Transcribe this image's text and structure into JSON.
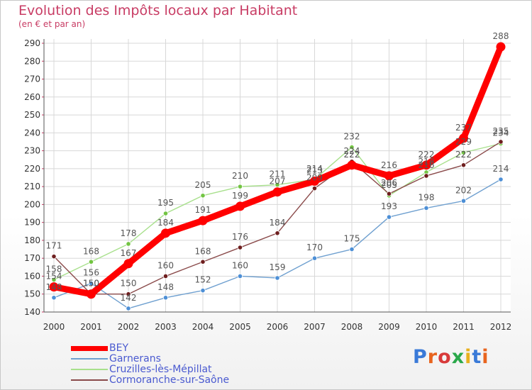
{
  "chart_data": {
    "type": "line",
    "title": "Evolution des Impôts locaux par Habitant",
    "subtitle": "(en € et par an)",
    "categories": [
      "2000",
      "2001",
      "2002",
      "2003",
      "2004",
      "2005",
      "2006",
      "2007",
      "2008",
      "2009",
      "2010",
      "2011",
      "2012"
    ],
    "ylim": [
      140,
      290
    ],
    "yticks": [
      140,
      150,
      160,
      170,
      180,
      190,
      200,
      210,
      220,
      230,
      240,
      250,
      260,
      270,
      280,
      290
    ],
    "series": [
      {
        "name": "Garnerans",
        "color": "#6fa0d0",
        "marker": "#4d8fd6",
        "values": [
          148,
          156,
          142,
          148,
          152,
          160,
          159,
          170,
          175,
          193,
          198,
          202,
          214
        ],
        "labels": [
          "148",
          "156",
          "142",
          "148",
          "152",
          "160",
          "159",
          "170",
          "175",
          "193",
          "198",
          "202",
          "214"
        ]
      },
      {
        "name": "Cruzilles-lès-Mépillat",
        "color": "#a8e08c",
        "marker": "#72c442",
        "values": [
          158,
          168,
          178,
          195,
          205,
          210,
          211,
          214,
          232,
          205,
          218,
          229,
          234
        ],
        "labels": [
          "158",
          "168",
          "178",
          "195",
          "205",
          "210",
          "211",
          "214",
          "232",
          "205",
          "218",
          "229",
          "234"
        ]
      },
      {
        "name": "Cormoranche-sur-Saône",
        "color": "#8a4a4a",
        "marker": "#6e1e1e",
        "values": [
          171,
          150,
          150,
          160,
          168,
          176,
          184,
          209,
          224,
          206,
          216,
          222,
          235
        ],
        "labels": [
          "171",
          "150",
          "150",
          "160",
          "168",
          "176",
          "184",
          "209",
          "224",
          "206",
          "216",
          "222",
          "235"
        ]
      },
      {
        "name": "BEY",
        "color": "#ff0000",
        "marker": "#ff0000",
        "values": [
          154,
          150,
          167,
          184,
          191,
          199,
          207,
          213,
          222,
          216,
          222,
          237,
          288
        ],
        "labels": [
          "154",
          "150",
          "167",
          "184",
          "191",
          "199",
          "207",
          "213",
          "222",
          "216",
          "222",
          "237",
          "288"
        ]
      }
    ]
  },
  "legend": {
    "items": [
      "BEY",
      "Garnerans",
      "Cruzilles-lès-Mépillat",
      "Cormoranche-sur-Saône"
    ]
  },
  "logo": {
    "letters": [
      "P",
      "r",
      "o",
      "x",
      "i",
      "t",
      "i"
    ],
    "colors": [
      "#3a7ad8",
      "#e8641e",
      "#d83a3a",
      "#2aa84a",
      "#e8b01e",
      "#3a7ad8",
      "#e8641e"
    ]
  }
}
